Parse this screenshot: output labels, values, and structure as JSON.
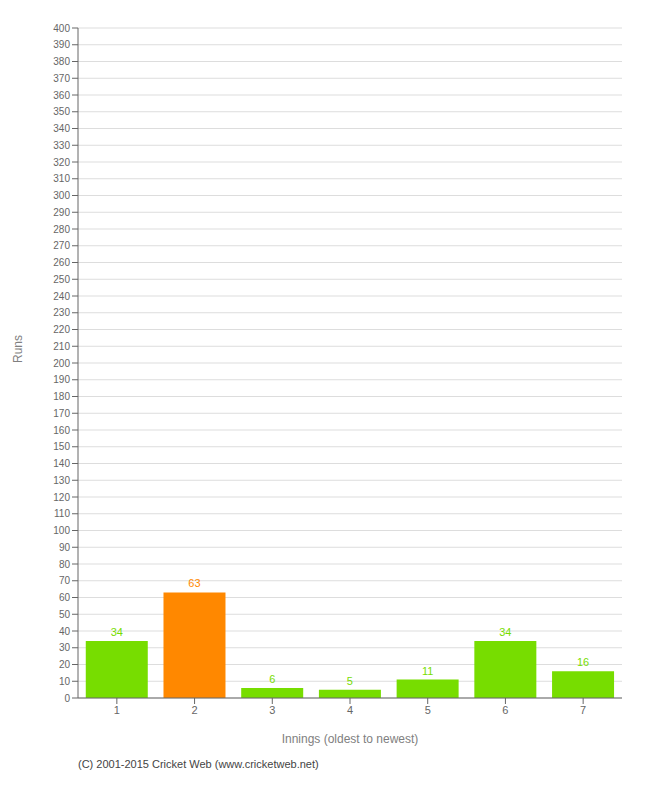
{
  "chart_data": {
    "type": "bar",
    "categories": [
      "1",
      "2",
      "3",
      "4",
      "5",
      "6",
      "7"
    ],
    "values": [
      34,
      63,
      6,
      5,
      11,
      34,
      16
    ],
    "colors": [
      "#77dd00",
      "#ff8800",
      "#77dd00",
      "#77dd00",
      "#77dd00",
      "#77dd00",
      "#77dd00"
    ],
    "xlabel": "Innings (oldest to newest)",
    "ylabel": "Runs",
    "ylim": [
      0,
      400
    ],
    "yticks": [
      0,
      10,
      20,
      30,
      40,
      50,
      60,
      70,
      80,
      90,
      100,
      110,
      120,
      130,
      140,
      150,
      160,
      170,
      180,
      190,
      200,
      210,
      220,
      230,
      240,
      250,
      260,
      270,
      280,
      290,
      300,
      310,
      320,
      330,
      340,
      350,
      360,
      370,
      380,
      390,
      400
    ],
    "grid": true,
    "data_labels": true,
    "annotations": [
      "(C) 2001-2015 Cricket Web (www.cricketweb.net)"
    ]
  }
}
